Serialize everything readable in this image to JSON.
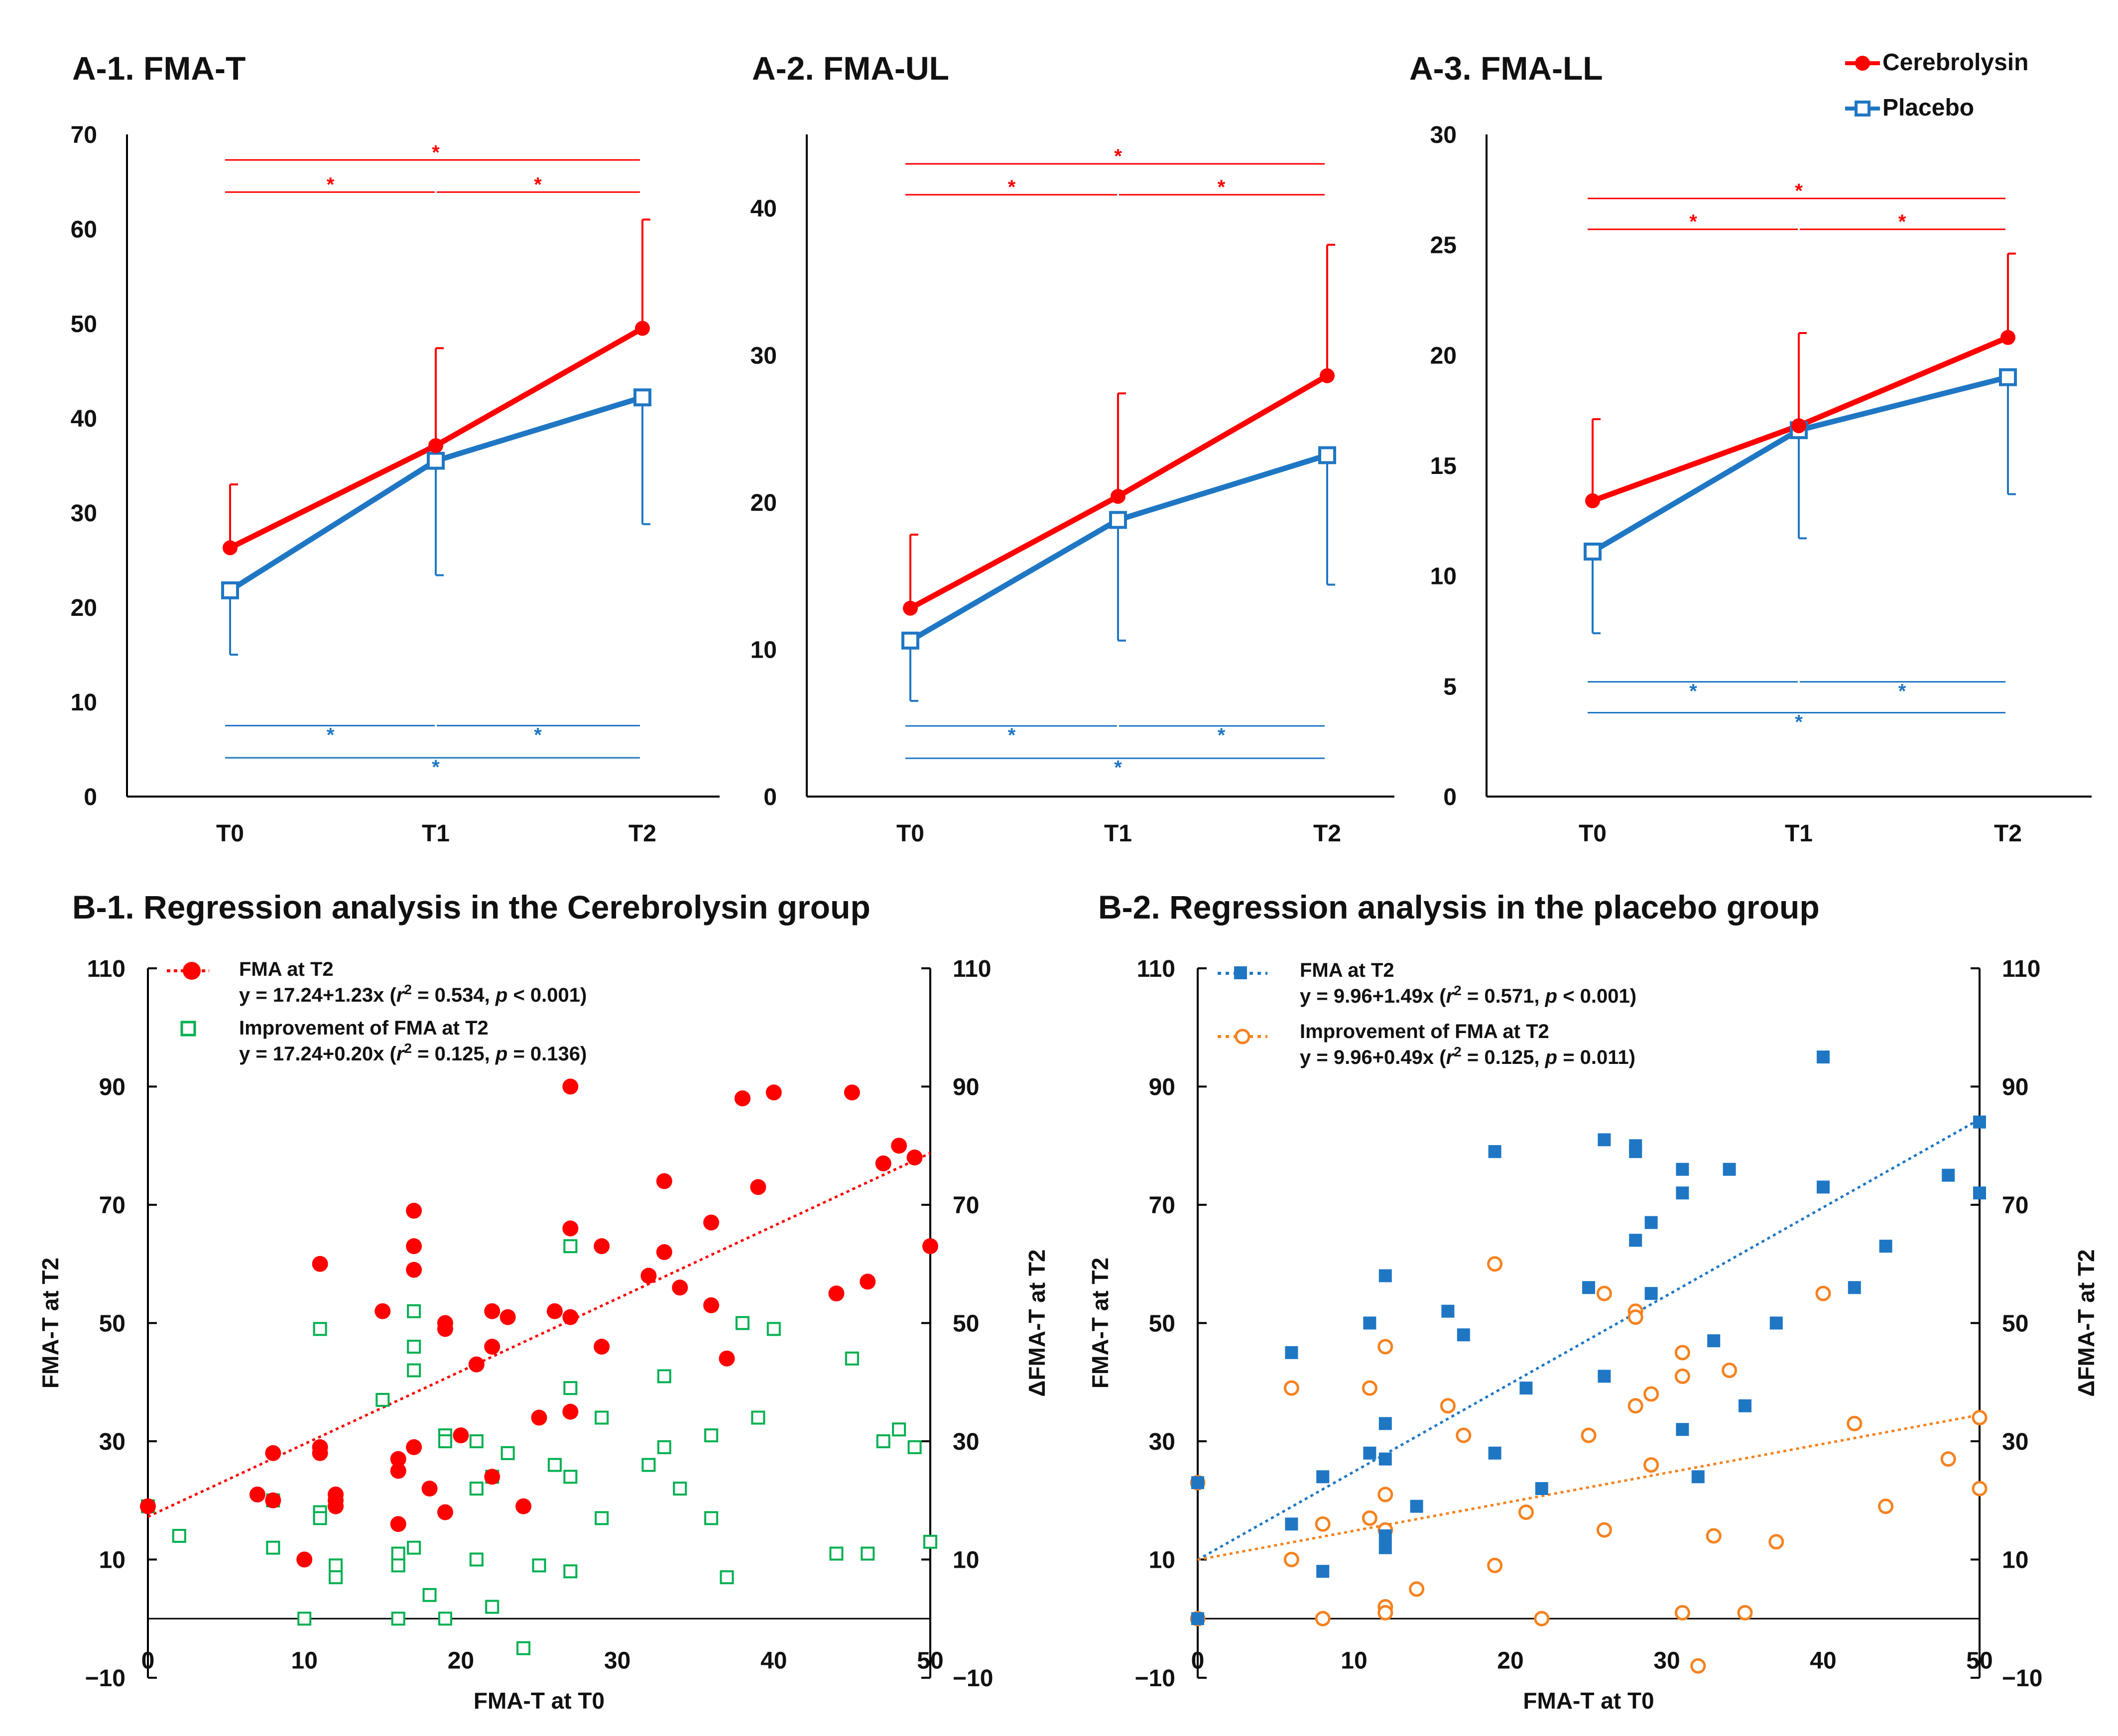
{
  "colors": {
    "cerebrolysin": "#ff0000",
    "placebo": "#1f77c4",
    "fma_t2_b1": "#ff0000",
    "improvement_b1": "#00b050",
    "fma_t2_b2": "#1f77c4",
    "improvement_b2": "#f5821f",
    "axis": "#000000"
  },
  "legend_top": {
    "cerebrolysin": "Cerebrolysin",
    "placebo": "Placebo"
  },
  "chart_data": [
    {
      "id": "a1",
      "type": "line",
      "title": "A-1. FMA-T",
      "categories": [
        "T0",
        "T1",
        "T2"
      ],
      "ylim": [
        0,
        70
      ],
      "yticks": [
        0,
        10,
        20,
        30,
        40,
        50,
        60,
        70
      ],
      "tick_labels": [
        "0",
        "10",
        "20",
        "30",
        "40",
        "50",
        "60",
        "70"
      ],
      "series": [
        {
          "name": "Cerebrolysin",
          "values": [
            26.3,
            37.1,
            49.5
          ],
          "error_up": [
            6.7,
            10.3,
            11.5
          ]
        },
        {
          "name": "Placebo",
          "values": [
            21.8,
            35.5,
            42.2
          ],
          "error_down": [
            6.8,
            12.1,
            13.4
          ]
        }
      ],
      "significance": {
        "cerebrolysin": {
          "brackets_y": [
            67.3,
            63.9
          ],
          "stars": [
            "*",
            "*",
            "*"
          ]
        },
        "placebo": {
          "brackets_y": [
            7.5,
            4.1
          ],
          "stars": [
            "*",
            "*",
            "*"
          ]
        }
      }
    },
    {
      "id": "a2",
      "type": "line",
      "title": "A-2. FMA-UL",
      "categories": [
        "T0",
        "T1",
        "T2"
      ],
      "ylim": [
        0,
        45
      ],
      "yticks": [
        0,
        10,
        20,
        30,
        40
      ],
      "tick_labels": [
        "0",
        "10",
        "20",
        "30",
        "40"
      ],
      "series": [
        {
          "name": "Cerebrolysin",
          "values": [
            12.8,
            20.4,
            28.6
          ],
          "error_up": [
            5.0,
            7.0,
            8.9
          ]
        },
        {
          "name": "Placebo",
          "values": [
            10.6,
            18.8,
            23.2
          ],
          "error_down": [
            4.1,
            8.2,
            8.8
          ]
        }
      ],
      "significance": {
        "cerebrolysin": {
          "brackets_y": [
            43.0,
            40.9
          ],
          "stars": [
            "*",
            "*",
            "*"
          ]
        },
        "placebo": {
          "brackets_y": [
            4.8,
            2.6
          ],
          "stars": [
            "*",
            "*",
            "*"
          ]
        }
      }
    },
    {
      "id": "a3",
      "type": "line",
      "title": "A-3. FMA-LL",
      "categories": [
        "T0",
        "T1",
        "T2"
      ],
      "ylim": [
        0,
        30
      ],
      "yticks": [
        0,
        5,
        10,
        15,
        20,
        25,
        30
      ],
      "tick_labels": [
        "0",
        "5",
        "10",
        "15",
        "20",
        "25",
        "30"
      ],
      "series": [
        {
          "name": "Cerebrolysin",
          "values": [
            13.4,
            16.8,
            20.8
          ],
          "error_up": [
            3.7,
            4.2,
            3.8
          ]
        },
        {
          "name": "Placebo",
          "values": [
            11.1,
            16.6,
            19.0
          ],
          "error_down": [
            3.7,
            4.9,
            5.3
          ]
        }
      ],
      "significance": {
        "cerebrolysin": {
          "brackets_y": [
            27.1,
            25.7
          ],
          "stars": [
            "*",
            "*",
            "*"
          ]
        },
        "placebo": {
          "brackets_y": [
            5.2,
            3.8
          ],
          "stars": [
            "*",
            "*",
            "*"
          ]
        }
      }
    },
    {
      "id": "b1",
      "type": "scatter",
      "title": "B-1. Regression analysis in the Cerebrolysin group",
      "xlabel": "FMA-T at T0",
      "ylabel": "FMA-T at T2",
      "y2label": "ΔFMA-T at T2",
      "xlim": [
        0,
        50
      ],
      "ylim": [
        -10,
        110
      ],
      "xticks": [
        0,
        10,
        20,
        30,
        40,
        50
      ],
      "x_tick_labels": [
        "0",
        "10",
        "20",
        "30",
        "40",
        "50"
      ],
      "yticks": [
        -10,
        10,
        30,
        50,
        70,
        90,
        110
      ],
      "y_tick_labels": [
        "−10",
        "10",
        "30",
        "50",
        "70",
        "90",
        "110"
      ],
      "legend": [
        {
          "label": "FMA at T2",
          "equation_pre": "y = 17.24+1.23x (",
          "r": "r",
          "eq_mid": "2",
          "equation_post": " = 0.534, ",
          "p": "p",
          "p_post": " < 0.001)"
        },
        {
          "label": "Improvement of FMA at T2",
          "equation_pre": "y = 17.24+0.20x (",
          "r": "r",
          "eq_mid": "2",
          "equation_post": " = 0.125, ",
          "p": "p",
          "p_post": " = 0.136)"
        }
      ],
      "trend": {
        "intercept": 17.24,
        "slope": 1.23
      },
      "series": [
        {
          "name": "FMA at T2",
          "marker": "filled-circle",
          "x": [
            0,
            7,
            8,
            8,
            10,
            11,
            11,
            11,
            12,
            12,
            12,
            15,
            16,
            16,
            16,
            17,
            17,
            17,
            17,
            18,
            19,
            19,
            19,
            20,
            21,
            22,
            22,
            22,
            23,
            24,
            25,
            26,
            27,
            27,
            27,
            27,
            29,
            29,
            32,
            33,
            33,
            34,
            36,
            36,
            37,
            38,
            39,
            38,
            40,
            44,
            45,
            46,
            47,
            48,
            49,
            50
          ],
          "y": [
            19,
            21,
            20,
            28,
            10,
            60,
            29,
            28,
            21,
            20,
            19,
            52,
            16,
            25,
            27,
            69,
            63,
            59,
            29,
            22,
            50,
            49,
            18,
            31,
            43,
            52,
            46,
            24,
            51,
            19,
            34,
            52,
            90,
            66,
            51,
            35,
            63,
            46,
            58,
            74,
            62,
            56,
            67,
            53,
            44,
            88,
            73,
            88,
            89,
            55,
            89,
            57,
            77,
            80,
            78,
            63
          ]
        },
        {
          "name": "Improvement of FMA at T2",
          "marker": "open-square",
          "x": [
            0,
            2,
            8,
            8,
            11,
            11,
            10,
            11,
            12,
            12,
            12,
            15,
            16,
            16,
            16,
            17,
            17,
            17,
            17,
            18,
            19,
            19,
            19,
            21,
            21,
            21,
            22,
            22,
            23,
            24,
            25,
            26,
            27,
            27,
            27,
            27,
            29,
            29,
            32,
            33,
            33,
            34,
            36,
            36,
            37,
            38,
            39,
            40,
            44,
            45,
            46,
            47,
            48,
            49,
            50
          ],
          "y": [
            19,
            14,
            12,
            20,
            49,
            18,
            0,
            17,
            9,
            7,
            20,
            37,
            11,
            0,
            9,
            52,
            46,
            42,
            12,
            4,
            31,
            30,
            0,
            10,
            22,
            30,
            24,
            2,
            28,
            -5,
            9,
            26,
            63,
            39,
            24,
            8,
            34,
            17,
            26,
            41,
            29,
            22,
            31,
            17,
            7,
            50,
            34,
            49,
            11,
            44,
            11,
            30,
            32,
            29,
            13
          ]
        }
      ]
    },
    {
      "id": "b2",
      "type": "scatter",
      "title": "B-2. Regression analysis in the placebo group",
      "xlabel": "FMA-T at T0",
      "ylabel": "FMA-T at T2",
      "y2label": "ΔFMA-T at T2",
      "xlim": [
        0,
        50
      ],
      "ylim": [
        -10,
        110
      ],
      "xticks": [
        0,
        10,
        20,
        30,
        40,
        50
      ],
      "x_tick_labels": [
        "0",
        "10",
        "20",
        "30",
        "40",
        "50"
      ],
      "yticks": [
        -10,
        10,
        30,
        50,
        70,
        90,
        110
      ],
      "y_tick_labels": [
        "−10",
        "10",
        "30",
        "50",
        "70",
        "90",
        "110"
      ],
      "legend": [
        {
          "label": "FMA at T2",
          "equation_pre": "y = 9.96+1.49x (",
          "r": "r",
          "eq_mid": "2",
          "equation_post": " = 0.571, ",
          "p": "p",
          "p_post": " < 0.001)"
        },
        {
          "label": "Improvement of FMA at T2",
          "equation_pre": "y = 9.96+0.49x (",
          "r": "r",
          "eq_mid": "2",
          "equation_post": " = 0.125, ",
          "p": "p",
          "p_post": " = 0.011)"
        }
      ],
      "trend_main": {
        "intercept": 9.96,
        "slope": 1.49
      },
      "trend_improvement": {
        "intercept": 9.96,
        "slope": 0.49
      },
      "series": [
        {
          "name": "FMA at T2",
          "marker": "filled-square",
          "x": [
            0,
            0,
            6,
            6,
            8,
            8,
            11,
            11,
            12,
            12,
            12,
            12,
            12,
            14,
            16,
            17,
            19,
            19,
            21,
            22,
            25,
            26,
            26,
            28,
            28,
            28,
            29,
            29,
            31,
            31,
            31,
            32,
            33,
            34,
            35,
            37,
            40,
            40,
            42,
            44,
            48,
            50,
            50
          ],
          "y": [
            23,
            0,
            45,
            16,
            24,
            8,
            50,
            28,
            58,
            33,
            27,
            14,
            12,
            19,
            52,
            48,
            79,
            28,
            39,
            22,
            56,
            81,
            41,
            80,
            79,
            64,
            67,
            55,
            76,
            72,
            32,
            24,
            47,
            76,
            36,
            50,
            95,
            73,
            56,
            63,
            75,
            84,
            72
          ]
        },
        {
          "name": "Improvement of FMA at T2",
          "marker": "open-circle",
          "x": [
            0,
            0,
            6,
            6,
            8,
            8,
            11,
            11,
            12,
            12,
            12,
            12,
            12,
            14,
            16,
            17,
            19,
            19,
            21,
            22,
            25,
            26,
            26,
            28,
            28,
            28,
            29,
            29,
            31,
            31,
            31,
            32,
            33,
            34,
            35,
            37,
            40,
            42,
            44,
            48,
            50,
            50
          ],
          "y": [
            23,
            0,
            39,
            10,
            16,
            0,
            39,
            17,
            46,
            21,
            15,
            2,
            1,
            5,
            36,
            31,
            60,
            9,
            18,
            0,
            31,
            55,
            15,
            52,
            51,
            36,
            38,
            26,
            45,
            41,
            1,
            -8,
            14,
            42,
            1,
            13,
            55,
            33,
            19,
            27,
            34,
            22
          ]
        }
      ]
    }
  ]
}
